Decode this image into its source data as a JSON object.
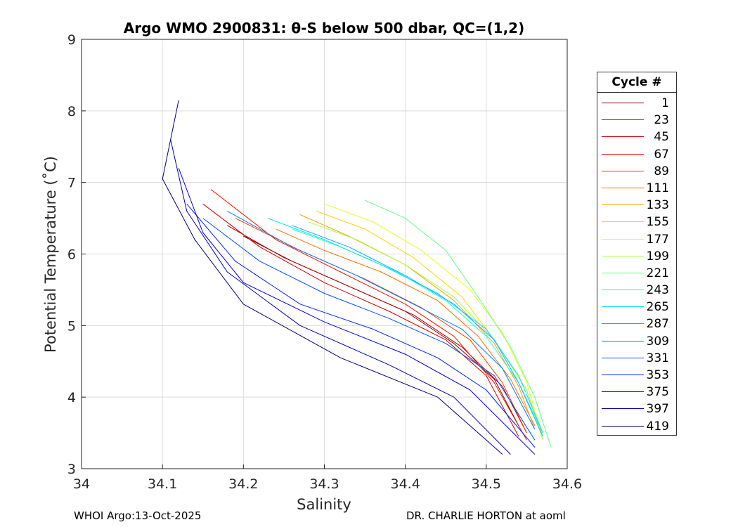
{
  "chart_data": {
    "type": "line",
    "title": "Argo WMO 2900831: θ-S below 500 dbar,  QC=(1,2)",
    "xlabel": "Salinity",
    "ylabel": "Potential Temperature (˚C)",
    "xlim": [
      34,
      34.6
    ],
    "ylim": [
      3,
      9
    ],
    "x_ticks": [
      "34",
      "34.1",
      "34.2",
      "34.3",
      "34.4",
      "34.5",
      "34.6"
    ],
    "y_ticks": [
      "3",
      "4",
      "5",
      "6",
      "7",
      "8",
      "9"
    ],
    "grid": true,
    "legend": {
      "title": "Cycle #",
      "placement": "right-outside",
      "entries": [
        {
          "label": "1",
          "color": "#7f0000"
        },
        {
          "label": "23",
          "color": "#b00000"
        },
        {
          "label": "45",
          "color": "#d40000"
        },
        {
          "label": "67",
          "color": "#ef1500"
        },
        {
          "label": "89",
          "color": "#ff3a00"
        },
        {
          "label": "111",
          "color": "#ff7000"
        },
        {
          "label": "133",
          "color": "#ffa000"
        },
        {
          "label": "155",
          "color": "#ffd400"
        },
        {
          "label": "177",
          "color": "#e8ff10"
        },
        {
          "label": "199",
          "color": "#a8ff40"
        },
        {
          "label": "221",
          "color": "#60ff80"
        },
        {
          "label": "243",
          "color": "#20ffc0"
        },
        {
          "label": "265",
          "color": "#00e0ff"
        },
        {
          "label": "287",
          "color": "#00b0ff"
        },
        {
          "label": "309",
          "color": "#0080ff"
        },
        {
          "label": "331",
          "color": "#0050ff"
        },
        {
          "label": "353",
          "color": "#0020ff"
        },
        {
          "label": "375",
          "color": "#0000e0"
        },
        {
          "label": "397",
          "color": "#0000b0"
        },
        {
          "label": "419",
          "color": "#000080"
        }
      ]
    },
    "series": [
      {
        "name": "1",
        "color": "#7f0000",
        "points": [
          [
            34.2,
            6.25
          ],
          [
            34.26,
            5.9
          ],
          [
            34.33,
            5.55
          ],
          [
            34.4,
            5.2
          ],
          [
            34.46,
            4.75
          ],
          [
            34.51,
            4.25
          ],
          [
            34.54,
            3.6
          ]
        ]
      },
      {
        "name": "23",
        "color": "#b00000",
        "points": [
          [
            34.18,
            6.4
          ],
          [
            34.25,
            5.95
          ],
          [
            34.33,
            5.55
          ],
          [
            34.41,
            5.15
          ],
          [
            34.47,
            4.7
          ],
          [
            34.52,
            4.15
          ],
          [
            34.55,
            3.5
          ]
        ]
      },
      {
        "name": "45",
        "color": "#d40000",
        "points": [
          [
            34.15,
            6.7
          ],
          [
            34.22,
            6.1
          ],
          [
            34.3,
            5.6
          ],
          [
            34.38,
            5.2
          ],
          [
            34.45,
            4.8
          ],
          [
            34.5,
            4.3
          ],
          [
            34.54,
            3.45
          ]
        ]
      },
      {
        "name": "67",
        "color": "#ef1500",
        "points": [
          [
            34.16,
            6.9
          ],
          [
            34.24,
            6.2
          ],
          [
            34.32,
            5.75
          ],
          [
            34.4,
            5.3
          ],
          [
            34.46,
            4.85
          ],
          [
            34.51,
            4.2
          ],
          [
            34.55,
            3.4
          ]
        ]
      },
      {
        "name": "89",
        "color": "#ff3a00",
        "points": [
          [
            34.19,
            6.5
          ],
          [
            34.27,
            6.05
          ],
          [
            34.35,
            5.65
          ],
          [
            34.42,
            5.25
          ],
          [
            34.48,
            4.8
          ],
          [
            34.52,
            4.2
          ],
          [
            34.55,
            3.5
          ]
        ]
      },
      {
        "name": "111",
        "color": "#ff7000",
        "points": [
          [
            34.24,
            6.35
          ],
          [
            34.3,
            6.05
          ],
          [
            34.37,
            5.75
          ],
          [
            34.44,
            5.35
          ],
          [
            34.49,
            4.85
          ],
          [
            34.53,
            4.25
          ],
          [
            34.56,
            3.6
          ]
        ]
      },
      {
        "name": "133",
        "color": "#ffa000",
        "points": [
          [
            34.27,
            6.55
          ],
          [
            34.33,
            6.25
          ],
          [
            34.4,
            5.85
          ],
          [
            34.46,
            5.35
          ],
          [
            34.51,
            4.75
          ],
          [
            34.54,
            4.15
          ],
          [
            34.56,
            3.55
          ]
        ]
      },
      {
        "name": "155",
        "color": "#ffd400",
        "points": [
          [
            34.29,
            6.6
          ],
          [
            34.35,
            6.35
          ],
          [
            34.41,
            5.95
          ],
          [
            34.47,
            5.4
          ],
          [
            34.51,
            4.8
          ],
          [
            34.55,
            4.1
          ],
          [
            34.57,
            3.45
          ]
        ]
      },
      {
        "name": "177",
        "color": "#e8ff10",
        "points": [
          [
            34.3,
            6.7
          ],
          [
            34.36,
            6.45
          ],
          [
            34.42,
            6.05
          ],
          [
            34.48,
            5.5
          ],
          [
            34.52,
            4.9
          ],
          [
            34.55,
            4.2
          ],
          [
            34.57,
            3.45
          ]
        ]
      },
      {
        "name": "199",
        "color": "#a8ff40",
        "points": [
          [
            34.28,
            6.45
          ],
          [
            34.34,
            6.2
          ],
          [
            34.4,
            5.85
          ],
          [
            34.46,
            5.4
          ],
          [
            34.51,
            4.8
          ],
          [
            34.55,
            4.1
          ],
          [
            34.57,
            3.4
          ]
        ]
      },
      {
        "name": "221",
        "color": "#60ff80",
        "points": [
          [
            34.35,
            6.75
          ],
          [
            34.4,
            6.5
          ],
          [
            34.45,
            6.05
          ],
          [
            34.49,
            5.4
          ],
          [
            34.53,
            4.7
          ],
          [
            34.56,
            4.0
          ],
          [
            34.58,
            3.3
          ]
        ]
      },
      {
        "name": "243",
        "color": "#20ffc0",
        "points": [
          [
            34.26,
            6.35
          ],
          [
            34.32,
            6.1
          ],
          [
            34.39,
            5.75
          ],
          [
            34.45,
            5.35
          ],
          [
            34.5,
            4.85
          ],
          [
            34.54,
            4.2
          ],
          [
            34.57,
            3.5
          ]
        ]
      },
      {
        "name": "265",
        "color": "#00e0ff",
        "points": [
          [
            34.23,
            6.5
          ],
          [
            34.3,
            6.2
          ],
          [
            34.37,
            5.85
          ],
          [
            34.44,
            5.45
          ],
          [
            34.5,
            4.95
          ],
          [
            34.54,
            4.3
          ],
          [
            34.57,
            3.5
          ]
        ]
      },
      {
        "name": "287",
        "color": "#00b0ff",
        "points": [
          [
            34.26,
            6.4
          ],
          [
            34.33,
            6.1
          ],
          [
            34.4,
            5.7
          ],
          [
            34.46,
            5.3
          ],
          [
            34.51,
            4.8
          ],
          [
            34.54,
            4.2
          ],
          [
            34.57,
            3.45
          ]
        ]
      },
      {
        "name": "309",
        "color": "#0080ff",
        "points": [
          [
            34.18,
            6.6
          ],
          [
            34.26,
            6.1
          ],
          [
            34.34,
            5.7
          ],
          [
            34.41,
            5.3
          ],
          [
            34.47,
            4.95
          ],
          [
            34.52,
            4.4
          ],
          [
            34.56,
            3.55
          ]
        ]
      },
      {
        "name": "331",
        "color": "#0050ff",
        "points": [
          [
            34.15,
            6.5
          ],
          [
            34.22,
            5.9
          ],
          [
            34.3,
            5.45
          ],
          [
            34.38,
            5.1
          ],
          [
            34.45,
            4.75
          ],
          [
            34.51,
            4.3
          ],
          [
            34.56,
            3.4
          ]
        ]
      },
      {
        "name": "353",
        "color": "#0020ff",
        "points": [
          [
            34.13,
            6.7
          ],
          [
            34.19,
            5.9
          ],
          [
            34.27,
            5.3
          ],
          [
            34.36,
            4.95
          ],
          [
            34.44,
            4.55
          ],
          [
            34.5,
            4.1
          ],
          [
            34.56,
            3.3
          ]
        ]
      },
      {
        "name": "375",
        "color": "#0000e0",
        "points": [
          [
            34.12,
            7.2
          ],
          [
            34.15,
            6.3
          ],
          [
            34.2,
            5.6
          ],
          [
            34.3,
            5.05
          ],
          [
            34.4,
            4.6
          ],
          [
            34.48,
            4.1
          ],
          [
            34.56,
            3.2
          ]
        ]
      },
      {
        "name": "397",
        "color": "#0000b0",
        "points": [
          [
            34.11,
            7.6
          ],
          [
            34.13,
            6.6
          ],
          [
            34.18,
            5.75
          ],
          [
            34.27,
            5.0
          ],
          [
            34.38,
            4.45
          ],
          [
            34.46,
            4.0
          ],
          [
            34.53,
            3.2
          ]
        ]
      },
      {
        "name": "419",
        "color": "#000080",
        "points": [
          [
            34.12,
            8.15
          ],
          [
            34.1,
            7.05
          ],
          [
            34.14,
            6.2
          ],
          [
            34.2,
            5.3
          ],
          [
            34.32,
            4.55
          ],
          [
            34.44,
            4.0
          ],
          [
            34.52,
            3.2
          ]
        ]
      }
    ]
  },
  "footer": {
    "left": "WHOI Argo:13-Oct-2025",
    "right": "DR. CHARLIE HORTON at aoml"
  }
}
